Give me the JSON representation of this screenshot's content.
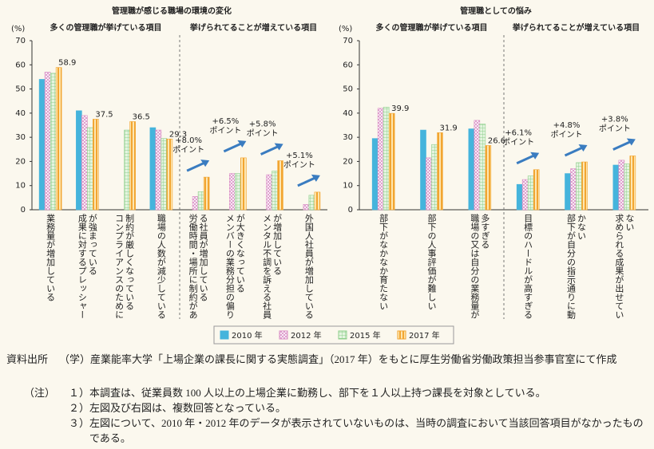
{
  "chart_data": [
    {
      "type": "bar",
      "title": "管理職が感じる職場の環境の変化",
      "y_label": "(%)",
      "ylim": [
        0,
        70
      ],
      "yticks": [
        0,
        10,
        20,
        30,
        40,
        50,
        60,
        70
      ],
      "groups": [
        {
          "subtitle": "多くの管理職が挙げている項目",
          "categories": [
            "業務量が増加している",
            "成果に対するプレッシャーが強まっている",
            "コンプライアンスのために制約が厳しくなっている",
            "職場の人数が減少している"
          ]
        },
        {
          "subtitle": "挙げられてることが増えている項目",
          "categories": [
            "労働時間・場所に制約がある社員が増加している",
            "メンバーの業務分担の偏りが大きくなっている",
            "メンタル不調を訴える社員が増加している",
            "外国人社員が増加している"
          ],
          "annotations": [
            [
              "+8.0%",
              "ポイント"
            ],
            [
              "+6.5%",
              "ポイント"
            ],
            [
              "+5.8%",
              "ポイント"
            ],
            [
              "+5.1%",
              "ポイント"
            ]
          ]
        }
      ],
      "series": [
        {
          "name": "2010 年",
          "color": "#45b4dc",
          "pattern": "solid",
          "values": [
            54,
            41,
            null,
            34,
            null,
            null,
            null,
            null
          ]
        },
        {
          "name": "2012 年",
          "color": "#d98cc4",
          "pattern": "crosshatch",
          "values": [
            57,
            39,
            null,
            33,
            5.5,
            15,
            14.5,
            2.2
          ]
        },
        {
          "name": "2015 年",
          "color": "#8fcf8c",
          "pattern": "grid",
          "values": [
            56.5,
            34,
            33,
            29.5,
            7.5,
            15,
            16,
            6
          ]
        },
        {
          "name": "2017 年",
          "color": "#f2a531",
          "pattern": "stripes",
          "values": [
            58.9,
            37.5,
            36.5,
            29.3,
            13.5,
            21.5,
            20.3,
            7.3
          ],
          "value_labels": [
            "58.9",
            "37.5",
            "36.5",
            "29.3",
            null,
            null,
            null,
            null
          ]
        }
      ]
    },
    {
      "type": "bar",
      "title": "管理職としての悩み",
      "y_label": "(%)",
      "ylim": [
        0,
        70
      ],
      "yticks": [
        0,
        10,
        20,
        30,
        40,
        50,
        60,
        70
      ],
      "groups": [
        {
          "subtitle": "多くの管理職が挙げている項目",
          "categories": [
            "部下がなかなか育たない",
            "部下の人事評価が難しい",
            "職場の又は自分の業務量が多すぎる"
          ]
        },
        {
          "subtitle": "挙げられてることが増えている項目",
          "categories": [
            "目標のハードルが高すぎる",
            "部下が自分の指示通りに動かない",
            "求められる成果が出せていない"
          ],
          "annotations": [
            [
              "+6.1%",
              "ポイント"
            ],
            [
              "+4.8%",
              "ポイント"
            ],
            [
              "+3.8%",
              "ポイント"
            ]
          ]
        }
      ],
      "series": [
        {
          "color": "#45b4dc",
          "pattern": "solid",
          "values": [
            29.5,
            33,
            33.5,
            10.5,
            15,
            18.5
          ]
        },
        {
          "color": "#d98cc4",
          "pattern": "crosshatch",
          "values": [
            42,
            21.5,
            37,
            12.5,
            17,
            20.5
          ]
        },
        {
          "color": "#8fcf8c",
          "pattern": "grid",
          "values": [
            42.5,
            27,
            35.5,
            14,
            19.5,
            19
          ]
        },
        {
          "color": "#f2a531",
          "pattern": "stripes",
          "values": [
            39.9,
            31.9,
            26.6,
            16.6,
            19.8,
            22.3
          ],
          "value_labels": [
            "39.9",
            "31.9",
            "26.6",
            null,
            null,
            null
          ]
        }
      ]
    }
  ],
  "notes": {
    "source_label": "資料出所",
    "source": "（学）産業能率大学「上場企業の課長に関する実態調査」（2017 年）をもとに厚生労働省労働政策担当参事官室にて作成",
    "note_label": "（注）",
    "items": [
      {
        "num": "１）",
        "text": "本調査は、従業員数 100 人以上の上場企業に勤務し、部下を１人以上持つ課長を対象としている。"
      },
      {
        "num": "２）",
        "text": "左図及び右図は、複数回答となっている。"
      },
      {
        "num": "３）",
        "text": "左図について、2010 年・2012 年のデータが表示されていないものは、当時の調査において当該回答項目がなかったものである。"
      }
    ]
  }
}
